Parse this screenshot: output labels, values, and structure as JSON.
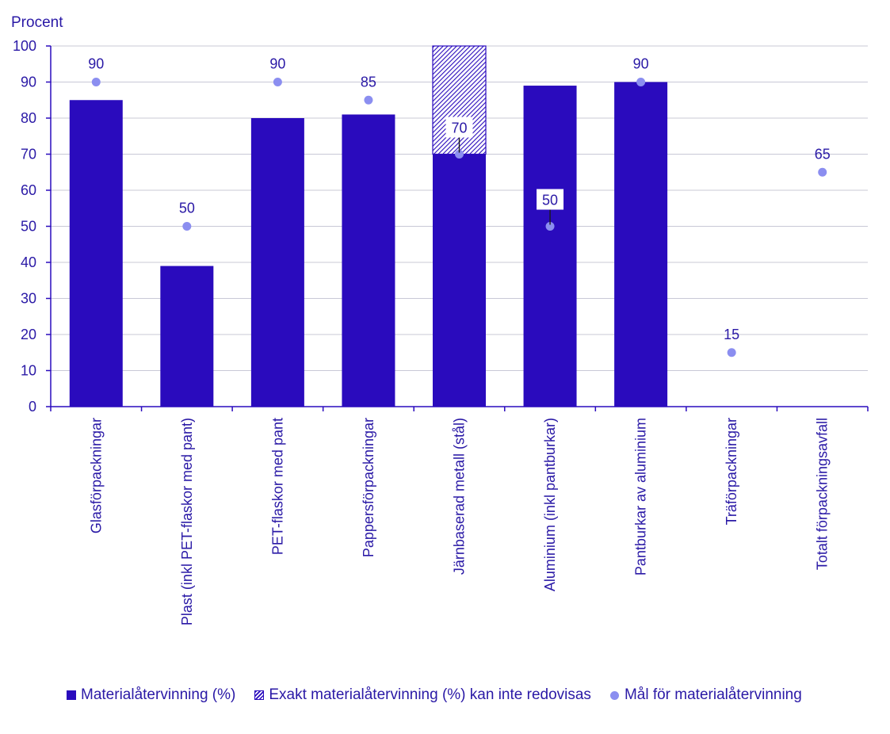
{
  "chart_data": {
    "type": "bar",
    "ylabel": "Procent",
    "ylim": [
      0,
      100
    ],
    "yticks": [
      0,
      10,
      20,
      30,
      40,
      50,
      60,
      70,
      80,
      90,
      100
    ],
    "categories": [
      "Glasförpackningar",
      "Plast (inkl PET-flaskor med pant)",
      "PET-flaskor med pant",
      "Pappersförpackningar",
      "Järnbaserad metall (stål)",
      "Aluminium (inkl pantburkar)",
      "Pantburkar av aluminium",
      "Träförpackningar",
      "Totalt förpackningsavfall"
    ],
    "series": [
      {
        "name": "Materialåtervinning (%)",
        "values": [
          85,
          39,
          80,
          81,
          70,
          89,
          90,
          null,
          null
        ],
        "color": "#2a0bbd"
      },
      {
        "name": "Exakt materialåtervinning (%) kan inte redovisas",
        "values": [
          null,
          null,
          null,
          null,
          30,
          null,
          null,
          null,
          null
        ],
        "pattern": "hatched",
        "color": "#2a0bbd"
      },
      {
        "name": "Mål för materialåtervinning",
        "type": "scatter",
        "values": [
          90,
          50,
          90,
          85,
          70,
          50,
          90,
          15,
          65
        ],
        "labels": [
          "90",
          "50",
          "90",
          "85",
          "70",
          "50",
          "90",
          "15",
          "65"
        ],
        "color": "#8b8ef0"
      }
    ],
    "grid": true,
    "legend_position": "bottom"
  },
  "colors": {
    "text": "#2a19a6",
    "bar": "#2a0bbd",
    "target": "#8b8ef0",
    "grid": "#c8c8d6",
    "axis": "#2a0bbd"
  },
  "legend": {
    "solid_label": "Materialåtervinning (%)",
    "hatch_label": "Exakt materialåtervinning (%) kan inte redovisas",
    "dot_label": "Mål för materialåtervinning"
  }
}
